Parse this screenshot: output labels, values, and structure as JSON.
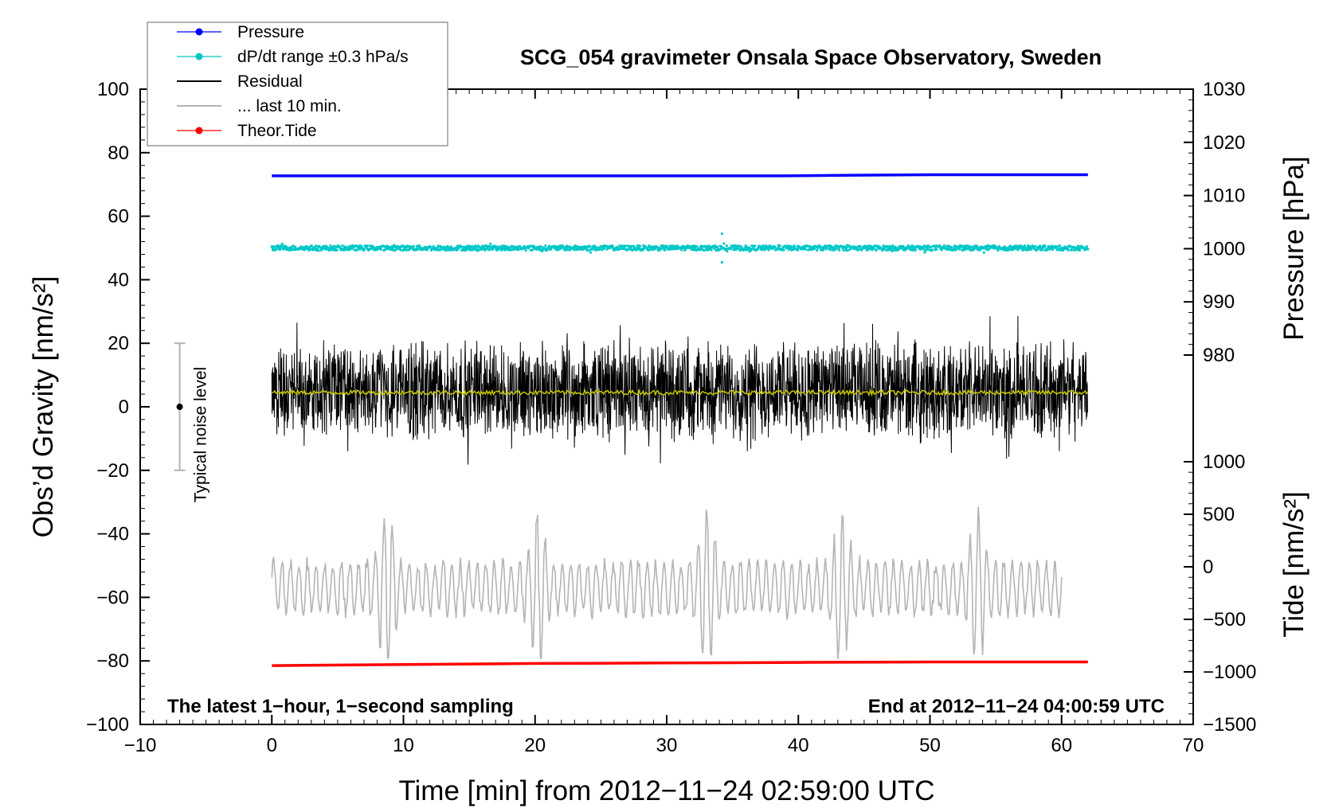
{
  "chart_data": {
    "type": "line",
    "title": "SCG_054 gravimeter Onsala Space Observatory, Sweden",
    "xlabel": "Time [min] from 2012−11−24 02:59:00 UTC",
    "ylabel": "Obs’d Gravity [nm/s²]",
    "ylabel_right_top": "Pressure [hPa]",
    "ylabel_right_bottom": "Tide [nm/s²]",
    "xlim": [
      -10,
      70
    ],
    "ylim": [
      -100,
      100
    ],
    "pressure_axis_range": [
      970,
      1030
    ],
    "tide_axis_range": [
      -1500,
      1000
    ],
    "x_ticks": [
      -10,
      0,
      10,
      20,
      30,
      40,
      50,
      60,
      70
    ],
    "x_tick_labels": [
      "−10",
      "0",
      "10",
      "20",
      "30",
      "40",
      "50",
      "60",
      "70"
    ],
    "y_ticks": [
      -100,
      -80,
      -60,
      -40,
      -20,
      0,
      20,
      40,
      60,
      80,
      100
    ],
    "y_tick_labels": [
      "−100",
      "−80",
      "−60",
      "−40",
      "−20",
      "0",
      "20",
      "40",
      "60",
      "80",
      "100"
    ],
    "pressure_ticks": [
      980,
      990,
      1000,
      1010,
      1020,
      1030
    ],
    "pressure_tick_labels": [
      "980",
      "990",
      "1000",
      "1010",
      "1020",
      "1030"
    ],
    "tide_ticks": [
      -1500,
      -1000,
      -500,
      0,
      500,
      1000
    ],
    "tide_tick_labels": [
      "−1500",
      "−1000",
      "−500",
      "0",
      "500",
      "1000"
    ],
    "legend_position": "top-left",
    "legend": [
      {
        "label": "Pressure",
        "color": "#0000ff",
        "marker": true
      },
      {
        "label": "dP/dt range ±0.3 hPa/s",
        "color": "#00c8c8",
        "marker": true
      },
      {
        "label": "Residual",
        "color": "#000000",
        "marker": false
      },
      {
        "label": "... last 10 min.",
        "color": "#b4b4b4",
        "marker": false
      },
      {
        "label": "Theor.Tide",
        "color": "#ff0000",
        "marker": true
      }
    ],
    "series": [
      {
        "name": "Pressure",
        "color": "#0000ff",
        "axis": "pressure_hPa",
        "x": [
          0,
          10,
          20,
          30,
          39,
          43,
          50,
          62
        ],
        "y": [
          1013.7,
          1013.7,
          1013.7,
          1013.7,
          1013.7,
          1013.8,
          1013.9,
          1013.9
        ]
      },
      {
        "name": "dP/dt range ±0.3 hPa/s",
        "color": "#00c8c8",
        "axis": "plot_level",
        "x": [
          0,
          62
        ],
        "y": [
          50,
          50
        ],
        "spread": 1.5
      },
      {
        "name": "Residual",
        "color": "#000000",
        "axis": "gravity_nm_s2",
        "x": [
          0,
          62
        ],
        "y": [
          5,
          5
        ],
        "min": -19,
        "max": 32
      },
      {
        "name": "... last 10 min.",
        "color": "#b4b4b4",
        "axis": "plot_level",
        "x": [
          0,
          60
        ],
        "y": [
          -57,
          -57
        ],
        "min": -80,
        "max": -29
      },
      {
        "name": "Theor.Tide",
        "color": "#ff0000",
        "axis": "tide_nm_s2",
        "x": [
          0,
          10,
          20,
          30,
          40,
          50,
          62
        ],
        "y": [
          -940,
          -930,
          -920,
          -915,
          -910,
          -905,
          -905
        ]
      },
      {
        "name": "",
        "color": "#c8c800",
        "axis": "gravity_nm_s2",
        "x": [
          0,
          62
        ],
        "y": [
          4.5,
          4.5
        ]
      }
    ],
    "noise_bar": {
      "x": -7,
      "center": 0,
      "low": -20,
      "high": 20,
      "label": "Typical noise level"
    },
    "annotations": {
      "left": "The latest 1−hour, 1−second sampling",
      "right": "End at 2012−11−24 04:00:59 UTC"
    },
    "grid": false
  }
}
